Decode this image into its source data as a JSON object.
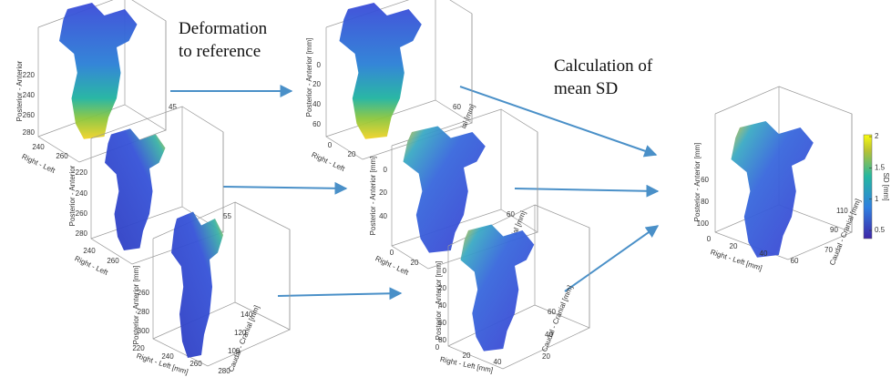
{
  "captions": {
    "deformation": [
      "Deformation",
      "to reference"
    ],
    "calculation": [
      "Calculation of",
      "mean SD"
    ]
  },
  "panels": [
    {
      "y_label": "Posterior - Anterior",
      "y_ticks": [
        220,
        240,
        260,
        280
      ],
      "x_label": "Right - Left",
      "x_ticks": [
        240,
        260
      ],
      "z_ticks": [
        45
      ]
    },
    {
      "y_label": "Posterior - Anterior",
      "y_ticks": [
        220,
        240,
        260,
        280
      ],
      "x_label": "Right - Left",
      "x_ticks": [
        240,
        260
      ],
      "z_ticks": [
        55
      ]
    },
    {
      "y_label": "Posterior - Anterior [mm]",
      "y_ticks": [
        260,
        280,
        300
      ],
      "x_label": "Right - Left [mm]",
      "x_ticks": [
        220,
        240,
        260,
        280
      ],
      "z_label": "Caudal - Cranial [mm]",
      "z_ticks": [
        100,
        120,
        140
      ]
    },
    {
      "y_label": "Posterior - Anterior [mm]",
      "y_ticks": [
        0,
        20,
        40,
        60
      ],
      "x_label": "Right - Left",
      "x_ticks": [
        0,
        20
      ],
      "z_label": "ial [mm]",
      "z_ticks": [
        60
      ]
    },
    {
      "y_label": "Posterior - Anterior [mm]",
      "y_ticks": [
        0,
        20,
        40
      ],
      "x_label": "Right - Left",
      "x_ticks": [
        0,
        20
      ],
      "z_label": "ial [mm]",
      "z_ticks": [
        60
      ]
    },
    {
      "y_label": "Posterior - Anterior [mm]",
      "y_ticks": [
        0,
        20,
        40,
        60,
        80
      ],
      "x_label": "Right - Left [mm]",
      "x_ticks": [
        0,
        20,
        40
      ],
      "z_label": "Caudal - Cranial [mm]",
      "z_ticks": [
        60,
        40,
        20
      ]
    },
    {
      "y_label": "Posterior - Anterior [mm]",
      "y_ticks": [
        60,
        80,
        100
      ],
      "x_label": "Right - Left [mm]",
      "x_ticks": [
        0,
        20,
        40,
        60
      ],
      "z_label": "Caudal - Cranial [mm]",
      "z_ticks": [
        110,
        90,
        70
      ]
    }
  ],
  "colorbar": {
    "label": "SD [mm]",
    "ticks": [
      0.5,
      1,
      1.5,
      2
    ],
    "lim": [
      0.37,
      2.03
    ]
  }
}
